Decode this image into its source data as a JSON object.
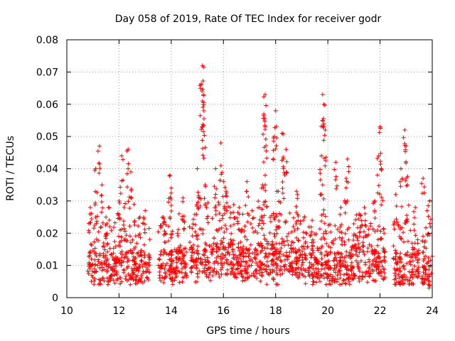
{
  "chart_data": {
    "type": "scatter",
    "title": "Day 058 of 2019, Rate Of TEC Index for receiver godr",
    "xlabel": "GPS time / hours",
    "ylabel": "ROTI / TECUs",
    "xlim": [
      10,
      24
    ],
    "ylim": [
      0,
      0.08
    ],
    "x_ticks": [
      10,
      12,
      14,
      16,
      18,
      20,
      22,
      24
    ],
    "x_tick_labels": [
      "10",
      "12",
      "14",
      "16",
      "18",
      "20",
      "22",
      "24"
    ],
    "y_ticks": [
      0,
      0.01,
      0.02,
      0.03,
      0.04,
      0.05,
      0.06,
      0.07,
      0.08
    ],
    "y_tick_labels": [
      "0",
      "0.01",
      "0.02",
      "0.03",
      "0.04",
      "0.05",
      "0.06",
      "0.07",
      "0.08"
    ],
    "grid": true,
    "marker": "+",
    "series": [
      {
        "name": "ROTI",
        "color": "#ff0000",
        "bands": [
          {
            "t0": 10.8,
            "t1": 11.2,
            "base": 0.01,
            "spread": 0.018,
            "peaks": [
              [
                11.25,
                0.047
              ],
              [
                11.1,
                0.04
              ],
              [
                10.9,
                0.028
              ]
            ]
          },
          {
            "t0": 11.2,
            "t1": 11.9,
            "base": 0.009,
            "spread": 0.015,
            "peaks": [
              [
                11.35,
                0.035
              ],
              [
                11.6,
                0.028
              ],
              [
                11.5,
                0.025
              ]
            ]
          },
          {
            "t0": 11.9,
            "t1": 12.6,
            "base": 0.01,
            "spread": 0.02,
            "peaks": [
              [
                12.1,
                0.044
              ],
              [
                12.35,
                0.046
              ],
              [
                12.45,
                0.039
              ],
              [
                12.0,
                0.03
              ]
            ]
          },
          {
            "t0": 12.6,
            "t1": 13.2,
            "base": 0.01,
            "spread": 0.015,
            "peaks": [
              [
                12.8,
                0.025
              ],
              [
                13.0,
                0.027
              ]
            ]
          },
          {
            "t0": 13.5,
            "t1": 14.2,
            "base": 0.01,
            "spread": 0.015,
            "peaks": [
              [
                13.95,
                0.038
              ],
              [
                14.0,
                0.034
              ],
              [
                13.7,
                0.025
              ]
            ]
          },
          {
            "t0": 14.2,
            "t1": 14.6,
            "base": 0.01,
            "spread": 0.015,
            "peaks": [
              [
                14.45,
                0.031
              ],
              [
                14.3,
                0.026
              ]
            ]
          },
          {
            "t0": 14.7,
            "t1": 15.5,
            "base": 0.012,
            "spread": 0.02,
            "peaks": [
              [
                15.2,
                0.072
              ],
              [
                15.15,
                0.066
              ],
              [
                15.2,
                0.061
              ],
              [
                15.25,
                0.058
              ],
              [
                15.2,
                0.053
              ],
              [
                15.0,
                0.04
              ],
              [
                15.3,
                0.035
              ]
            ]
          },
          {
            "t0": 15.5,
            "t1": 16.4,
            "base": 0.012,
            "spread": 0.018,
            "peaks": [
              [
                15.9,
                0.048
              ],
              [
                15.7,
                0.04
              ],
              [
                16.0,
                0.036
              ],
              [
                16.1,
                0.033
              ]
            ]
          },
          {
            "t0": 16.4,
            "t1": 17.3,
            "base": 0.011,
            "spread": 0.015,
            "peaks": [
              [
                16.9,
                0.036
              ],
              [
                16.6,
                0.028
              ],
              [
                17.1,
                0.027
              ]
            ]
          },
          {
            "t0": 17.3,
            "t1": 17.9,
            "base": 0.012,
            "spread": 0.018,
            "peaks": [
              [
                17.6,
                0.063
              ],
              [
                17.55,
                0.057
              ],
              [
                17.6,
                0.053
              ],
              [
                17.6,
                0.038
              ],
              [
                17.5,
                0.035
              ]
            ]
          },
          {
            "t0": 17.9,
            "t1": 18.6,
            "base": 0.012,
            "spread": 0.018,
            "peaks": [
              [
                18.0,
                0.058
              ],
              [
                17.95,
                0.05
              ],
              [
                18.25,
                0.051
              ],
              [
                18.4,
                0.046
              ],
              [
                18.3,
                0.04
              ],
              [
                18.1,
                0.033
              ]
            ]
          },
          {
            "t0": 18.6,
            "t1": 19.6,
            "base": 0.011,
            "spread": 0.015,
            "peaks": [
              [
                18.8,
                0.033
              ],
              [
                19.1,
                0.025
              ],
              [
                19.4,
                0.024
              ]
            ]
          },
          {
            "t0": 19.6,
            "t1": 20.0,
            "base": 0.011,
            "spread": 0.015,
            "peaks": [
              [
                19.8,
                0.063
              ],
              [
                19.85,
                0.06
              ],
              [
                19.9,
                0.052
              ],
              [
                19.75,
                0.044
              ],
              [
                19.8,
                0.035
              ]
            ]
          },
          {
            "t0": 20.0,
            "t1": 20.9,
            "base": 0.009,
            "spread": 0.014,
            "peaks": [
              [
                20.3,
                0.042
              ],
              [
                20.75,
                0.043
              ],
              [
                20.7,
                0.037
              ],
              [
                20.5,
                0.028
              ]
            ]
          },
          {
            "t0": 20.9,
            "t1": 21.6,
            "base": 0.011,
            "spread": 0.015,
            "peaks": [
              [
                21.2,
                0.026
              ],
              [
                21.4,
                0.028
              ]
            ]
          },
          {
            "t0": 21.6,
            "t1": 22.2,
            "base": 0.01,
            "spread": 0.016,
            "peaks": [
              [
                22.0,
                0.053
              ],
              [
                21.95,
                0.044
              ],
              [
                22.05,
                0.04
              ],
              [
                21.8,
                0.03
              ]
            ]
          },
          {
            "t0": 22.5,
            "t1": 23.3,
            "base": 0.009,
            "spread": 0.015,
            "peaks": [
              [
                22.95,
                0.052
              ],
              [
                23.0,
                0.047
              ],
              [
                22.8,
                0.04
              ],
              [
                23.05,
                0.035
              ],
              [
                22.6,
                0.032
              ]
            ]
          },
          {
            "t0": 23.3,
            "t1": 23.5,
            "base": 0.01,
            "spread": 0.01,
            "peaks": [
              [
                23.35,
                0.028
              ]
            ]
          },
          {
            "t0": 23.6,
            "t1": 24.0,
            "base": 0.008,
            "spread": 0.012,
            "peaks": [
              [
                23.65,
                0.037
              ],
              [
                23.9,
                0.03
              ],
              [
                23.8,
                0.027
              ]
            ]
          }
        ]
      }
    ]
  }
}
